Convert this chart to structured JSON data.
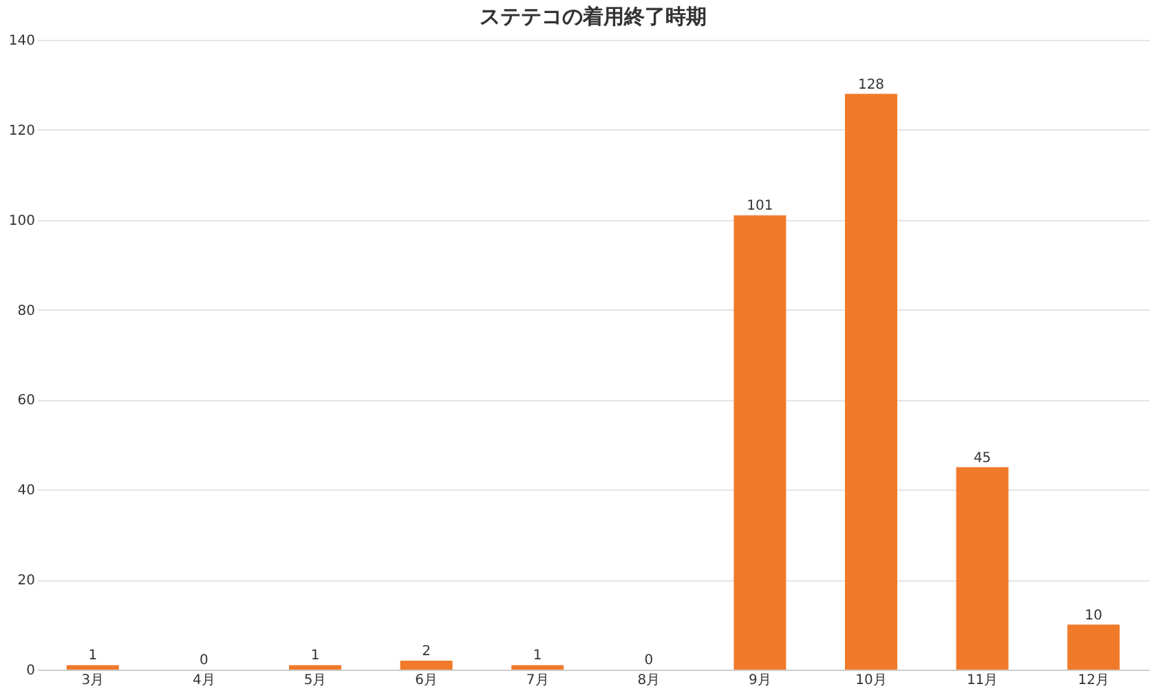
{
  "chart_data": {
    "type": "bar",
    "title": "ステテコの着用終了時期",
    "categories": [
      "3月",
      "4月",
      "5月",
      "6月",
      "7月",
      "8月",
      "9月",
      "10月",
      "11月",
      "12月"
    ],
    "values": [
      1,
      0,
      1,
      2,
      1,
      0,
      101,
      128,
      45,
      10
    ],
    "color": "#f07a2a",
    "ylim": [
      0,
      140
    ],
    "yticks": [
      0,
      20,
      40,
      60,
      80,
      100,
      120,
      140
    ],
    "grid": "y",
    "data_labels": true
  }
}
